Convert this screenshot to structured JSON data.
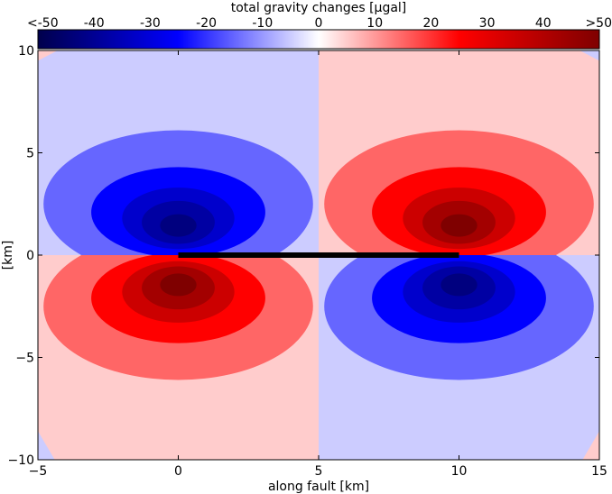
{
  "chart_data": {
    "type": "heatmap",
    "title": "",
    "xlabel": "along fault [km]",
    "ylabel": "[km]",
    "xlim": [
      -5,
      15
    ],
    "ylim": [
      -10,
      10
    ],
    "x_ticks": [
      -5,
      0,
      5,
      10,
      15
    ],
    "y_ticks": [
      -10,
      -5,
      0,
      5,
      10
    ],
    "grid": false,
    "colorbar": {
      "label": "total gravity changes [μgal]",
      "position": "top",
      "ticks": [
        "<-50",
        "-40",
        "-30",
        "-20",
        "-10",
        "0",
        "10",
        "20",
        "30",
        "40",
        ">50"
      ],
      "range": [
        -50,
        50
      ],
      "colormap": "seismic",
      "stops": [
        {
          "value": -50,
          "color": "#00004c"
        },
        {
          "value": -25,
          "color": "#0000ff"
        },
        {
          "value": 0,
          "color": "#ffffff"
        },
        {
          "value": 25,
          "color": "#ff0000"
        },
        {
          "value": 50,
          "color": "#7f0000"
        }
      ]
    },
    "contour_levels": [
      {
        "level": "5-10",
        "color": "#ffcccc"
      },
      {
        "level": "10-20",
        "color": "#ff6666"
      },
      {
        "level": "20-30",
        "color": "#ff0000"
      },
      {
        "level": "30-40",
        "color": "#cc0000"
      },
      {
        "level": "40-50",
        "color": "#a30000"
      },
      {
        "level": ">50",
        "color": "#7f0000"
      },
      {
        "level": "-10 to -5",
        "color": "#ccccff"
      },
      {
        "level": "-20 to -10",
        "color": "#6666ff"
      },
      {
        "level": "-30 to -20",
        "color": "#0000ff"
      },
      {
        "level": "-40 to -30",
        "color": "#0000cc"
      },
      {
        "level": "-50 to -40",
        "color": "#0000a3"
      },
      {
        "level": "<-50",
        "color": "#00007f"
      }
    ],
    "quadrants": [
      {
        "region": "x 0-5, y 0-10",
        "sign": "negative",
        "background_level": "-10 to -5"
      },
      {
        "region": "x 5-15, y 0-10",
        "sign": "positive",
        "background_level": "5-10"
      },
      {
        "region": "x 0-5, y -10-0",
        "sign": "positive",
        "background_level": "5-10"
      },
      {
        "region": "x 5-15, y -10-0",
        "sign": "negative",
        "background_level": "-10 to -5"
      }
    ],
    "extrema": [
      {
        "x": 0,
        "y": 1.3,
        "value": "<-50"
      },
      {
        "x": 10,
        "y": 1.3,
        "value": ">50"
      },
      {
        "x": 0,
        "y": -1.3,
        "value": ">50"
      },
      {
        "x": 10,
        "y": -1.3,
        "value": "<-50"
      }
    ],
    "fault_line": {
      "x": [
        0,
        10
      ],
      "y": [
        0,
        0
      ],
      "color": "#000000"
    }
  }
}
